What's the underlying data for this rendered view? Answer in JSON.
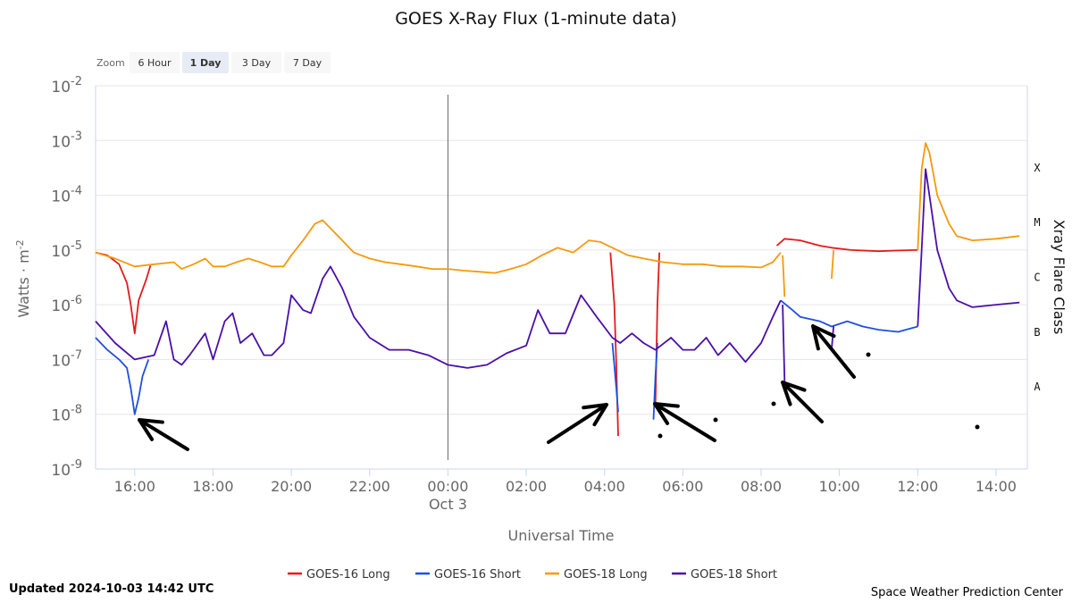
{
  "chart_data": {
    "type": "line",
    "title": "GOES X-Ray Flux (1-minute data)",
    "xlabel": "Universal Time",
    "ylabel": "Watts · m",
    "ylabel_superscript": "-2",
    "y2label": "Xray Flare Class",
    "yscale": "log",
    "ylim": [
      1e-09,
      0.01
    ],
    "xlim": [
      15.0,
      38.8
    ],
    "y_ticks": [
      {
        "base": "10",
        "exp": "-2",
        "value": 0.01
      },
      {
        "base": "10",
        "exp": "-3",
        "value": 0.001
      },
      {
        "base": "10",
        "exp": "-4",
        "value": 0.0001
      },
      {
        "base": "10",
        "exp": "-5",
        "value": 1e-05
      },
      {
        "base": "10",
        "exp": "-6",
        "value": 1e-06
      },
      {
        "base": "10",
        "exp": "-7",
        "value": 1e-07
      },
      {
        "base": "10",
        "exp": "-8",
        "value": 1e-08
      },
      {
        "base": "10",
        "exp": "-9",
        "value": 1e-09
      }
    ],
    "x_ticks": [
      {
        "label": "16:00",
        "value": 16
      },
      {
        "label": "18:00",
        "value": 18
      },
      {
        "label": "20:00",
        "value": 20
      },
      {
        "label": "22:00",
        "value": 22
      },
      {
        "label": "00:00",
        "value": 24
      },
      {
        "label": "02:00",
        "value": 26
      },
      {
        "label": "04:00",
        "value": 28
      },
      {
        "label": "06:00",
        "value": 30
      },
      {
        "label": "08:00",
        "value": 32
      },
      {
        "label": "10:00",
        "value": 34
      },
      {
        "label": "12:00",
        "value": 36
      },
      {
        "label": "14:00",
        "value": 38
      }
    ],
    "date_label": {
      "label": "Oct 3",
      "value": 24
    },
    "flare_classes": [
      {
        "label": "X",
        "value": 0.000316
      },
      {
        "label": "M",
        "value": 3.16e-05
      },
      {
        "label": "C",
        "value": 3.16e-06
      },
      {
        "label": "B",
        "value": 3.16e-07
      },
      {
        "label": "A",
        "value": 3.16e-08
      }
    ],
    "series": [
      {
        "name": "GOES-16 Long",
        "color": "#e41a1c",
        "x": [
          15.0,
          15.3,
          15.6,
          15.8,
          15.9,
          16.0,
          16.1,
          16.3,
          16.4
        ],
        "y": [
          9e-06,
          8e-06,
          5.5e-06,
          2.5e-06,
          1e-06,
          3e-07,
          1.2e-06,
          3e-06,
          5.2e-06
        ],
        "segments": [
          {
            "x": [
              28.15,
              28.25,
              28.3,
              28.35
            ],
            "y": [
              9e-06,
              1e-06,
              8e-08,
              4e-09
            ]
          },
          {
            "x": [
              29.3,
              29.35,
              29.4
            ],
            "y": [
              1.5e-08,
              1e-06,
              9e-06
            ]
          },
          {
            "x": [
              32.4,
              32.6,
              33.0,
              33.5,
              33.8,
              34.3,
              35.0,
              35.5,
              36.0
            ],
            "y": [
              1.2e-05,
              1.6e-05,
              1.5e-05,
              1.2e-05,
              1.1e-05,
              1e-05,
              9.5e-06,
              9.8e-06,
              1e-05
            ]
          }
        ]
      },
      {
        "name": "GOES-16 Short",
        "color": "#1f4fe0",
        "x": [
          15.0,
          15.3,
          15.6,
          15.8,
          15.9,
          16.0,
          16.1,
          16.2,
          16.35
        ],
        "y": [
          2.5e-07,
          1.5e-07,
          1e-07,
          7e-08,
          3e-08,
          1e-08,
          2e-08,
          5e-08,
          1e-07
        ],
        "segments": [
          {
            "x": [
              28.2,
              28.3,
              28.35
            ],
            "y": [
              2e-07,
              3e-08,
              1.1e-08
            ]
          },
          {
            "x": [
              29.25,
              29.3,
              29.35
            ],
            "y": [
              8e-09,
              5e-08,
              2e-07
            ]
          },
          {
            "x": [
              32.5,
              32.8,
              33.0,
              33.5,
              33.8,
              34.2,
              34.6,
              35.0,
              35.5,
              36.0
            ],
            "y": [
              1.2e-06,
              8e-07,
              6e-07,
              5e-07,
              4e-07,
              5e-07,
              4e-07,
              3.5e-07,
              3.2e-07,
              4e-07
            ]
          }
        ]
      },
      {
        "name": "GOES-18 Long",
        "color": "#f59a0c",
        "x": [
          15.0,
          15.5,
          16.0,
          16.5,
          17.0,
          17.2,
          17.5,
          17.8,
          18.0,
          18.3,
          18.6,
          18.9,
          19.2,
          19.5,
          19.8,
          20.0,
          20.3,
          20.6,
          20.8,
          21.0,
          21.3,
          21.6,
          22.0,
          22.4,
          22.8,
          23.2,
          23.6,
          24.0,
          24.4,
          24.8,
          25.2,
          25.6,
          26.0,
          26.4,
          26.8,
          27.2,
          27.6,
          27.9,
          28.2,
          28.6,
          29.0,
          29.5,
          30.0,
          30.5,
          31.0,
          31.5,
          32.0,
          32.3,
          32.5
        ],
        "y": [
          9e-06,
          7e-06,
          5e-06,
          5.5e-06,
          6e-06,
          4.5e-06,
          5.5e-06,
          7e-06,
          5e-06,
          5e-06,
          6e-06,
          7e-06,
          6e-06,
          5e-06,
          5e-06,
          8e-06,
          1.5e-05,
          3e-05,
          3.5e-05,
          2.5e-05,
          1.5e-05,
          9e-06,
          7e-06,
          6e-06,
          5.5e-06,
          5e-06,
          4.5e-06,
          4.5e-06,
          4.2e-06,
          4e-06,
          3.8e-06,
          4.5e-06,
          5.5e-06,
          8e-06,
          1.1e-05,
          9e-06,
          1.5e-05,
          1.4e-05,
          1.1e-05,
          8e-06,
          7e-06,
          6e-06,
          5.5e-06,
          5.5e-06,
          5e-06,
          5e-06,
          4.8e-06,
          6e-06,
          9e-06
        ],
        "segments": [
          {
            "x": [
              32.55,
              32.6
            ],
            "y": [
              8e-06,
              1.4e-06
            ]
          },
          {
            "x": [
              33.8,
              33.85
            ],
            "y": [
              3e-06,
              1e-05
            ]
          },
          {
            "x": [
              36.0,
              36.1,
              36.2,
              36.3,
              36.5,
              36.8,
              37.0,
              37.4,
              38.0,
              38.6
            ],
            "y": [
              1e-05,
              0.0003,
              0.0009,
              0.0006,
              0.0001,
              3e-05,
              1.8e-05,
              1.5e-05,
              1.6e-05,
              1.8e-05
            ]
          }
        ]
      },
      {
        "name": "GOES-18 Short",
        "color": "#4b0fa8",
        "x": [
          15.0,
          15.5,
          16.0,
          16.5,
          16.8,
          17.0,
          17.2,
          17.4,
          17.8,
          18.0,
          18.3,
          18.5,
          18.7,
          19.0,
          19.3,
          19.5,
          19.8,
          20.0,
          20.3,
          20.5,
          20.8,
          21.0,
          21.3,
          21.6,
          22.0,
          22.5,
          23.0,
          23.5,
          24.0,
          24.5,
          25.0,
          25.5,
          26.0,
          26.3,
          26.6,
          27.0,
          27.4,
          27.8,
          28.2,
          28.4,
          28.7,
          29.0,
          29.3,
          29.7,
          30.0,
          30.3,
          30.6,
          30.9,
          31.2,
          31.6,
          32.0,
          32.3,
          32.5
        ],
        "y": [
          5e-07,
          2e-07,
          1e-07,
          1.2e-07,
          5e-07,
          1e-07,
          8e-08,
          1.2e-07,
          3e-07,
          1e-07,
          5e-07,
          7e-07,
          2e-07,
          3e-07,
          1.2e-07,
          1.2e-07,
          2e-07,
          1.5e-06,
          8e-07,
          7e-07,
          3e-06,
          5e-06,
          2e-06,
          6e-07,
          2.5e-07,
          1.5e-07,
          1.5e-07,
          1.2e-07,
          8e-08,
          7e-08,
          8e-08,
          1.3e-07,
          1.8e-07,
          8e-07,
          3e-07,
          3e-07,
          1.5e-06,
          6e-07,
          2.5e-07,
          2e-07,
          3e-07,
          2e-07,
          1.5e-07,
          2.5e-07,
          1.5e-07,
          1.5e-07,
          2.5e-07,
          1.2e-07,
          2e-07,
          9e-08,
          2e-07,
          6e-07,
          1.2e-06
        ],
        "segments": [
          {
            "x": [
              32.55,
              32.6
            ],
            "y": [
              1e-06,
              4e-08
            ]
          },
          {
            "x": [
              33.8,
              33.85
            ],
            "y": [
              1.5e-07,
              4e-07
            ]
          },
          {
            "x": [
              36.0,
              36.1,
              36.2,
              36.3,
              36.5,
              36.8,
              37.0,
              37.4,
              38.0,
              38.6
            ],
            "y": [
              4e-07,
              1e-05,
              0.0003,
              0.0001,
              1e-05,
              2e-06,
              1.2e-06,
              9e-07,
              1e-06,
              1.1e-06
            ]
          }
        ]
      }
    ]
  },
  "zoom": {
    "label": "Zoom",
    "buttons": [
      "6 Hour",
      "1 Day",
      "3 Day",
      "7 Day"
    ],
    "selected": "1 Day"
  },
  "footer": {
    "updated": "Updated 2024-10-03 14:42 UTC",
    "credit": "Space Weather Prediction Center"
  }
}
